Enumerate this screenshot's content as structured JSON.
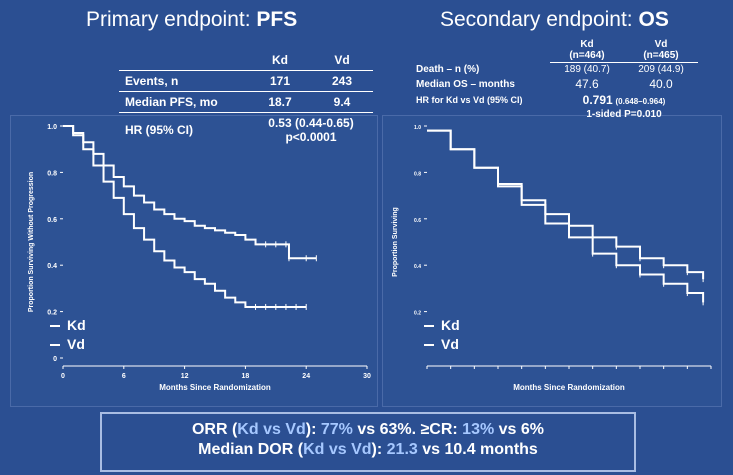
{
  "titles": {
    "left_prefix": "Primary endpoint: ",
    "left_bold": "PFS",
    "right_prefix": "Secondary endpoint: ",
    "right_bold": "OS"
  },
  "pfs_table": {
    "col_kd": "Kd",
    "col_vd": "Vd",
    "rows": [
      {
        "label": "Events, n",
        "kd": "171",
        "vd": "243"
      },
      {
        "label": "Median PFS, mo",
        "kd": "18.7",
        "vd": "9.4"
      },
      {
        "label": "HR (95% CI)",
        "value": "0.53 (0.44-0.65)",
        "p": "p<0.0001"
      }
    ]
  },
  "os_table": {
    "col_kd": "Kd",
    "col_kd_n": "(n=464)",
    "col_vd": "Vd",
    "col_vd_n": "(n=465)",
    "death_label": "Death – n (%)",
    "death_kd": "189 (40.7)",
    "death_vd": "209 (44.9)",
    "median_label": "Median OS – months",
    "median_kd": "47.6",
    "median_vd": "40.0",
    "hr_label": "HR for Kd vs Vd (95% CI)",
    "hr_value": "0.791",
    "hr_ci": "(0.648–0.964)",
    "p_value": "1-sided P=0.010"
  },
  "legend": {
    "kd": "Kd",
    "vd": "Vd"
  },
  "bottom": {
    "line1_a": "ORR (",
    "line1_kd": "Kd vs Vd",
    "line1_b": "): ",
    "line1_c": "77%",
    "line1_d": " vs 63%. ≥CR: ",
    "line1_e": "13%",
    "line1_f": " vs 6%",
    "line2_a": "Median DOR (",
    "line2_kd": "Kd vs Vd",
    "line2_b": "): ",
    "line2_c": "21.3",
    "line2_d": " vs 10.4 months"
  },
  "colors": {
    "background": "#2b4f92",
    "line": "#ffffff",
    "highlight": "#a6c8ff"
  },
  "chart_data": [
    {
      "type": "line",
      "title": "Primary endpoint: PFS",
      "xlabel": "Months Since Randomization",
      "ylabel": "Proportion Surviving Without Progression",
      "xlim": [
        0,
        30
      ],
      "ylim": [
        0,
        1.0
      ],
      "xticks": [
        "0",
        "6",
        "12",
        "18",
        "24",
        "30"
      ],
      "yticks": [
        "0",
        "0.2",
        "0.4",
        "0.6",
        "0.8",
        "1.0"
      ],
      "series": [
        {
          "name": "Kd",
          "x": [
            0,
            1,
            2,
            3,
            4,
            5,
            6,
            7,
            8,
            9,
            10,
            11,
            12,
            13,
            14,
            15,
            16,
            17,
            18,
            19,
            20,
            21,
            22,
            22.3,
            24,
            25
          ],
          "y": [
            1.0,
            0.97,
            0.93,
            0.88,
            0.83,
            0.78,
            0.74,
            0.7,
            0.67,
            0.64,
            0.62,
            0.6,
            0.59,
            0.57,
            0.56,
            0.55,
            0.54,
            0.53,
            0.51,
            0.49,
            0.49,
            0.49,
            0.49,
            0.43,
            0.43,
            0.43
          ]
        },
        {
          "name": "Vd",
          "x": [
            0,
            1,
            2,
            3,
            4,
            5,
            6,
            7,
            8,
            9,
            10,
            11,
            12,
            13,
            14,
            15,
            16,
            17,
            18,
            19,
            20,
            21,
            22,
            23,
            24
          ],
          "y": [
            1.0,
            0.96,
            0.9,
            0.83,
            0.76,
            0.69,
            0.62,
            0.56,
            0.51,
            0.46,
            0.42,
            0.39,
            0.37,
            0.34,
            0.32,
            0.29,
            0.26,
            0.24,
            0.22,
            0.22,
            0.22,
            0.22,
            0.22,
            0.22,
            0.22
          ]
        }
      ]
    },
    {
      "type": "line",
      "title": "Secondary endpoint: OS",
      "xlabel": "Months Since Randomization",
      "ylabel": "Proportion Surviving",
      "xlim": [
        0,
        72
      ],
      "ylim": [
        0,
        1.0
      ],
      "yticks": [
        "0.2",
        "0.4",
        "0.6",
        "0.8",
        "1.0"
      ],
      "series": [
        {
          "name": "Kd",
          "x": [
            0,
            6,
            12,
            18,
            24,
            30,
            36,
            42,
            48,
            54,
            60,
            66,
            70
          ],
          "y": [
            0.98,
            0.9,
            0.82,
            0.75,
            0.68,
            0.62,
            0.57,
            0.52,
            0.48,
            0.43,
            0.4,
            0.37,
            0.34
          ]
        },
        {
          "name": "Vd",
          "x": [
            0,
            6,
            12,
            18,
            24,
            30,
            36,
            42,
            48,
            54,
            60,
            66,
            70
          ],
          "y": [
            0.98,
            0.9,
            0.82,
            0.74,
            0.66,
            0.58,
            0.52,
            0.45,
            0.4,
            0.36,
            0.32,
            0.28,
            0.24
          ]
        }
      ]
    }
  ]
}
